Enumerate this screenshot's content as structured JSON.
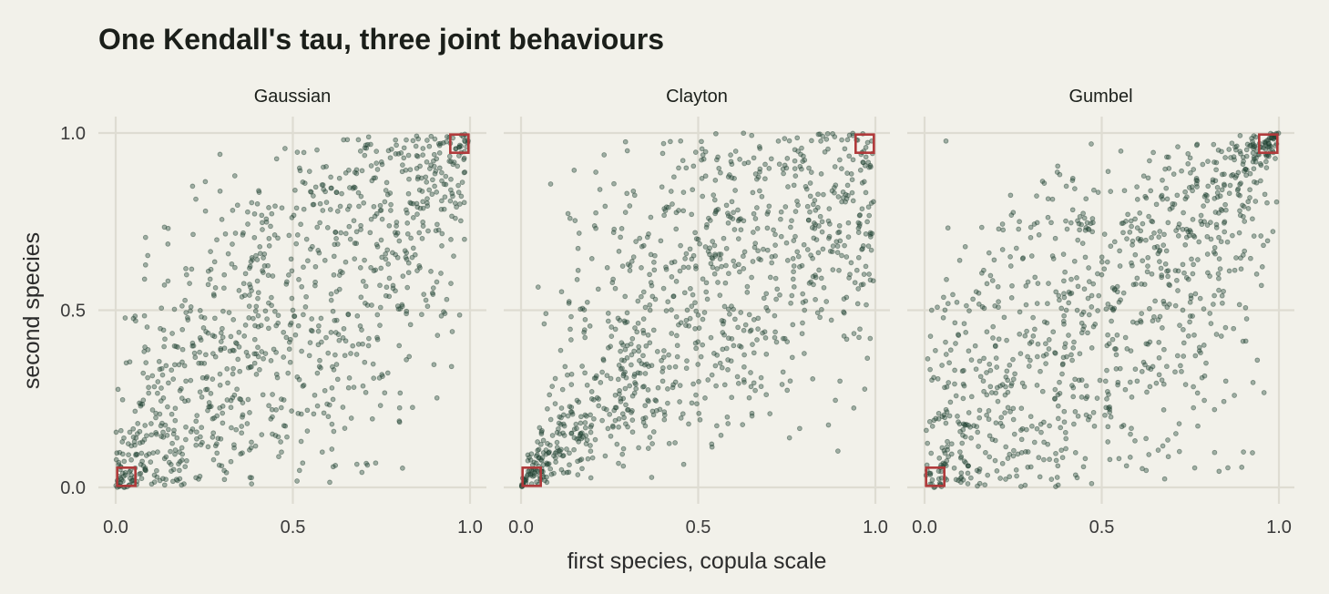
{
  "chart_data": {
    "type": "scatter",
    "title": "One Kendall's tau, three joint behaviours",
    "xlabel": "first species, copula scale",
    "ylabel": "second species",
    "xlim": [
      0,
      1
    ],
    "ylim": [
      0,
      1
    ],
    "xticks": [
      0.0,
      0.5,
      1.0
    ],
    "yticks": [
      0.0,
      0.5,
      1.0
    ],
    "xtick_labels": [
      "0.0",
      "0.5",
      "1.0"
    ],
    "ytick_labels": [
      "0.0",
      "0.5",
      "1.0"
    ],
    "grid": true,
    "point_color": "#2d5240",
    "highlight_color": "#b0393a",
    "points_per_panel": 1000,
    "panels": [
      {
        "name": "Gaussian",
        "copula": "gaussian",
        "highlight_corners": [
          [
            0.03,
            0.03
          ],
          [
            0.97,
            0.97
          ]
        ],
        "sample_points": [
          [
            0.02,
            0.04
          ],
          [
            0.05,
            0.02
          ],
          [
            0.1,
            0.18
          ],
          [
            0.18,
            0.1
          ],
          [
            0.25,
            0.35
          ],
          [
            0.35,
            0.25
          ],
          [
            0.5,
            0.5
          ],
          [
            0.62,
            0.72
          ],
          [
            0.72,
            0.62
          ],
          [
            0.85,
            0.9
          ],
          [
            0.9,
            0.85
          ],
          [
            0.97,
            0.96
          ],
          [
            0.98,
            0.99
          ],
          [
            0.2,
            0.6
          ],
          [
            0.6,
            0.2
          ],
          [
            0.4,
            0.8
          ],
          [
            0.8,
            0.4
          ]
        ]
      },
      {
        "name": "Clayton",
        "copula": "clayton",
        "highlight_corners": [
          [
            0.03,
            0.03
          ],
          [
            0.97,
            0.97
          ]
        ],
        "sample_points": [
          [
            0.01,
            0.02
          ],
          [
            0.03,
            0.01
          ],
          [
            0.05,
            0.06
          ],
          [
            0.08,
            0.1
          ],
          [
            0.12,
            0.09
          ],
          [
            0.15,
            0.14
          ],
          [
            0.2,
            0.25
          ],
          [
            0.3,
            0.4
          ],
          [
            0.4,
            0.3
          ],
          [
            0.5,
            0.7
          ],
          [
            0.6,
            0.4
          ],
          [
            0.7,
            0.9
          ],
          [
            0.8,
            0.5
          ],
          [
            0.9,
            0.3
          ],
          [
            0.95,
            0.98
          ],
          [
            0.3,
            0.95
          ],
          [
            0.85,
            0.75
          ]
        ]
      },
      {
        "name": "Gumbel",
        "copula": "gumbel",
        "highlight_corners": [
          [
            0.03,
            0.03
          ],
          [
            0.97,
            0.97
          ]
        ],
        "sample_points": [
          [
            0.02,
            0.5
          ],
          [
            0.05,
            0.2
          ],
          [
            0.1,
            0.1
          ],
          [
            0.2,
            0.4
          ],
          [
            0.3,
            0.2
          ],
          [
            0.4,
            0.5
          ],
          [
            0.5,
            0.6
          ],
          [
            0.6,
            0.3
          ],
          [
            0.7,
            0.8
          ],
          [
            0.8,
            0.85
          ],
          [
            0.9,
            0.92
          ],
          [
            0.95,
            0.96
          ],
          [
            0.97,
            0.98
          ],
          [
            0.99,
            0.99
          ],
          [
            0.4,
            0.85
          ],
          [
            0.85,
            0.3
          ],
          [
            0.9,
            0.1
          ]
        ]
      }
    ]
  }
}
